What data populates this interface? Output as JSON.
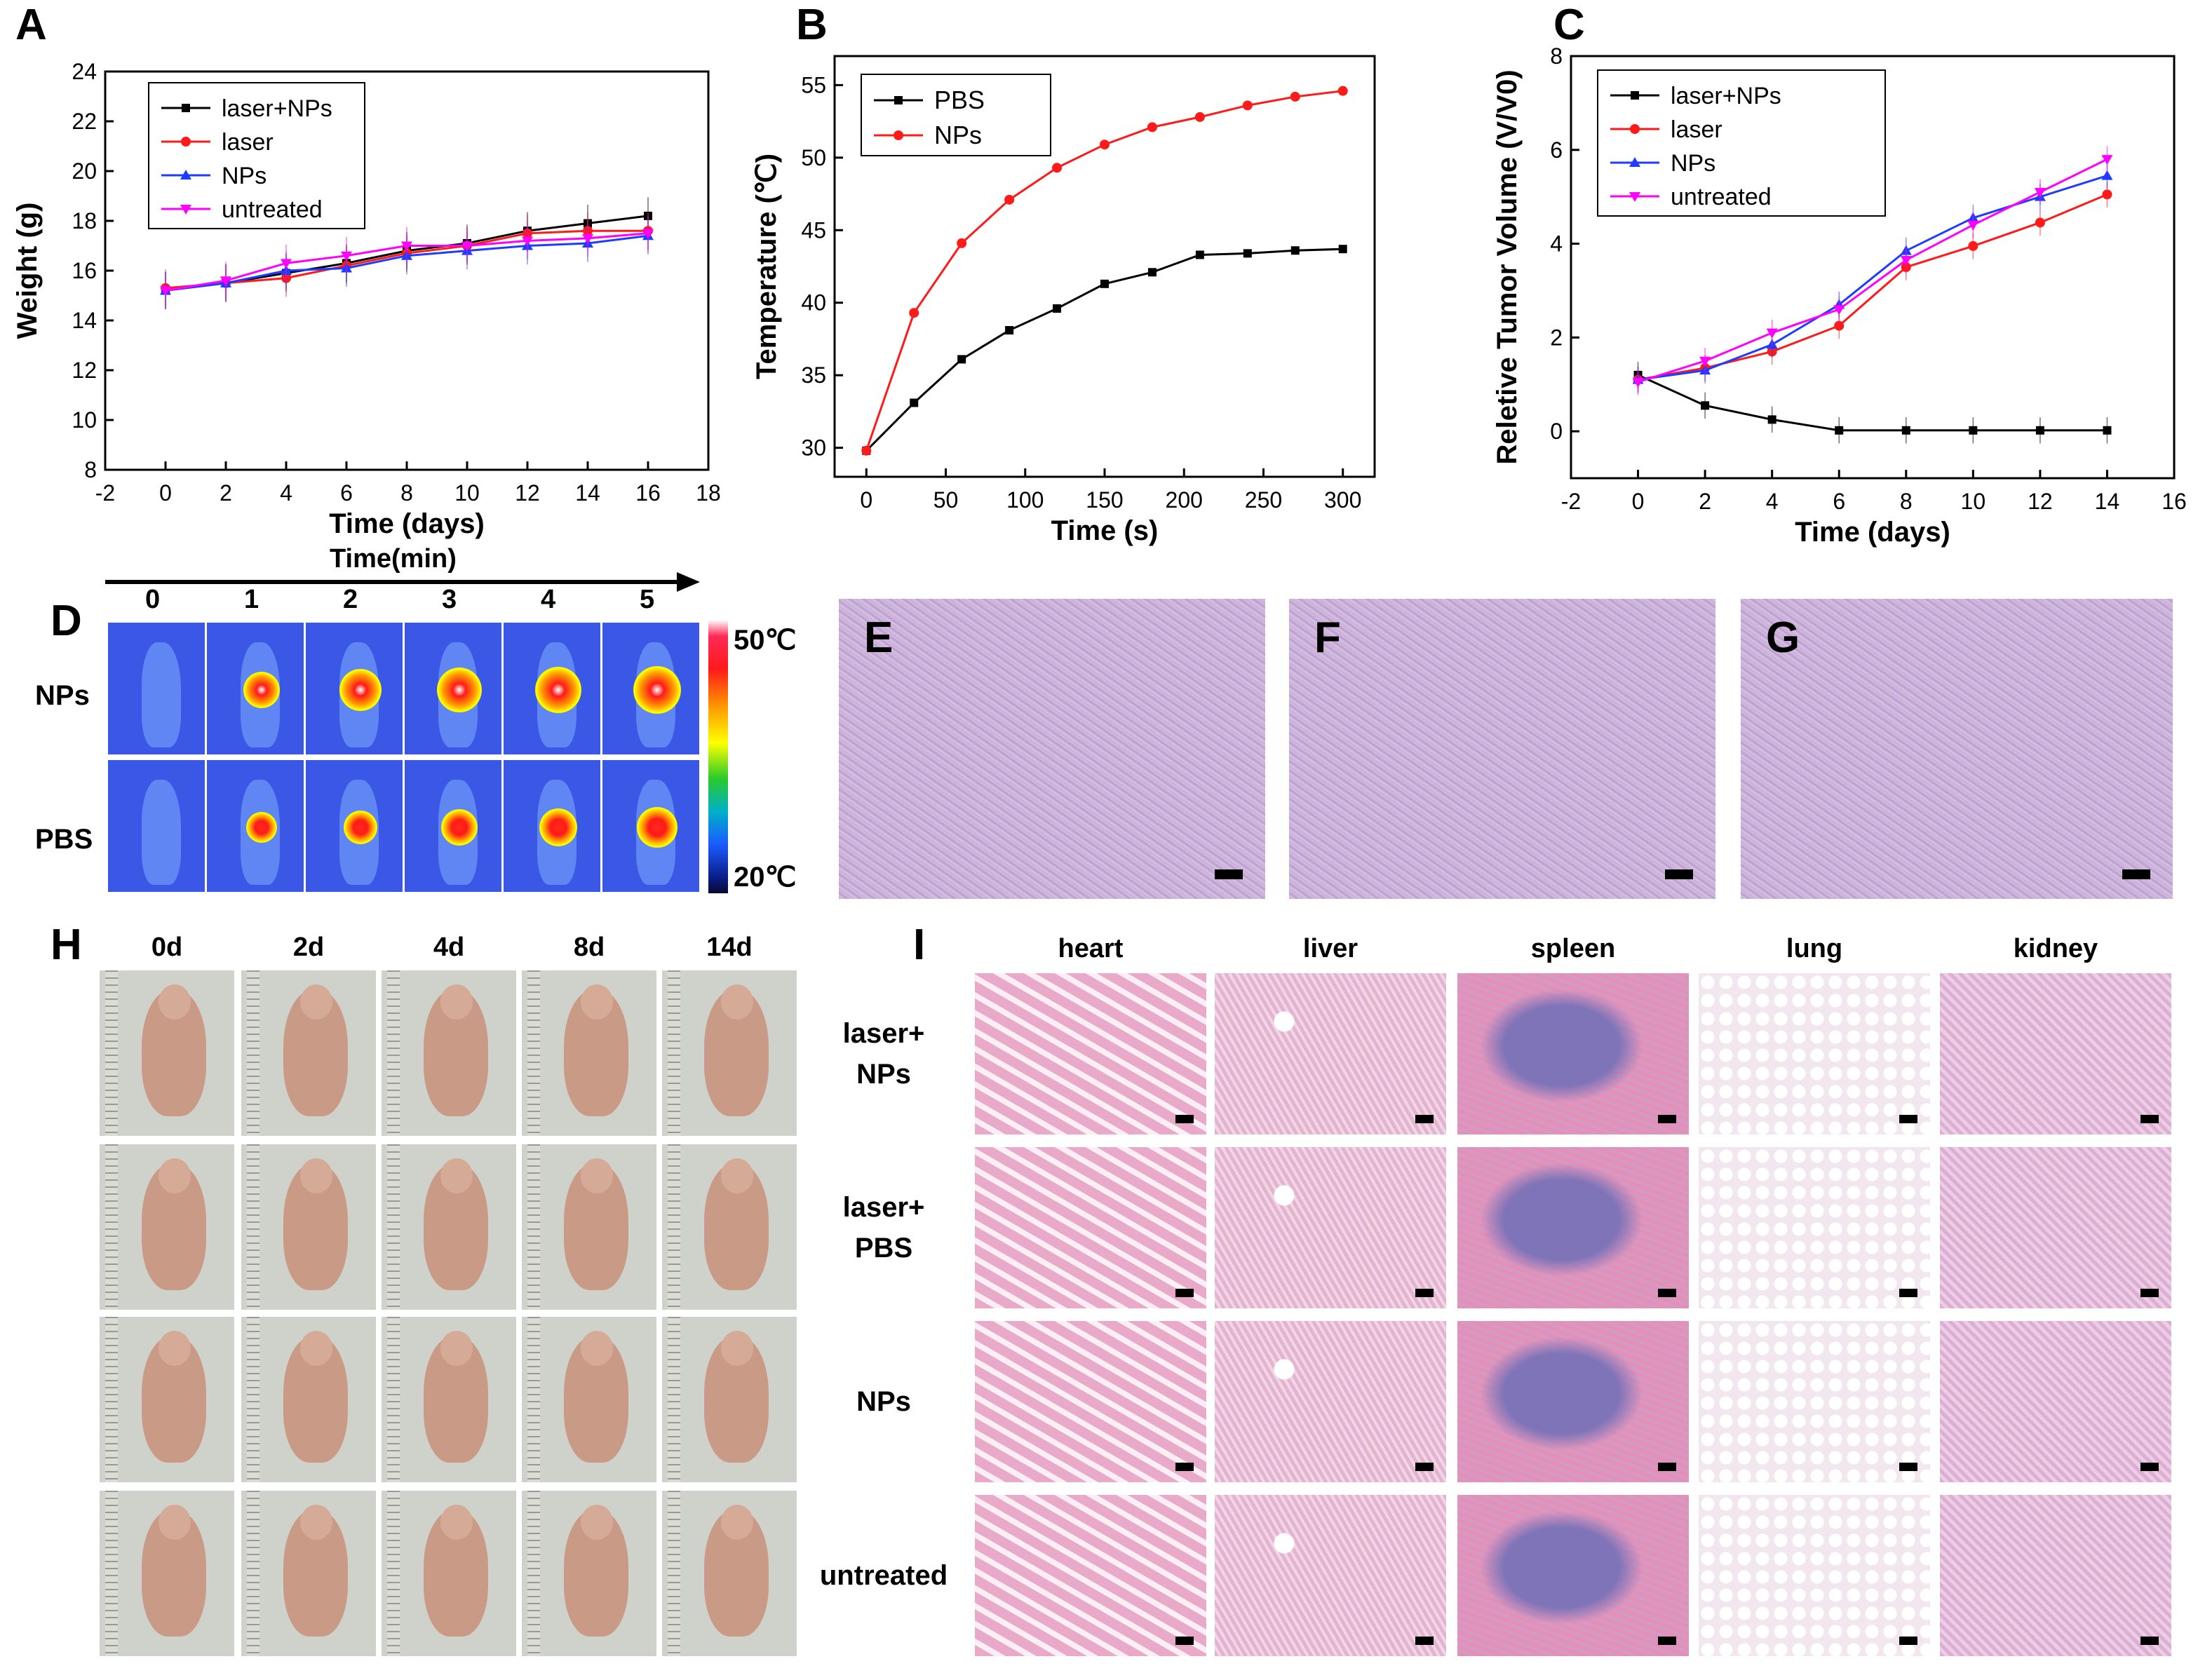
{
  "panels": {
    "A": {
      "letter": "A",
      "chart_data": {
        "type": "line",
        "xlabel": "Time (days)",
        "ylabel": "Weight (g)",
        "xlim": [
          -2,
          18
        ],
        "ylim": [
          8,
          24
        ],
        "xticks": [
          -2,
          0,
          2,
          4,
          6,
          8,
          10,
          12,
          14,
          16,
          18
        ],
        "yticks": [
          8,
          10,
          12,
          14,
          16,
          18,
          20,
          22,
          24
        ],
        "legend": "top-left",
        "x": [
          0,
          2,
          4,
          6,
          8,
          10,
          12,
          14,
          16
        ],
        "series": [
          {
            "name": "laser+NPs",
            "color": "#000000",
            "marker": "square",
            "values": [
              15.2,
              15.5,
              15.9,
              16.3,
              16.8,
              17.1,
              17.6,
              17.9,
              18.2
            ]
          },
          {
            "name": "laser",
            "color": "#ff1a1a",
            "marker": "circle",
            "values": [
              15.3,
              15.5,
              15.7,
              16.2,
              16.7,
              17.0,
              17.5,
              17.6,
              17.6
            ]
          },
          {
            "name": "NPs",
            "color": "#1f3bff",
            "marker": "triangle-up",
            "values": [
              15.2,
              15.5,
              16.0,
              16.1,
              16.6,
              16.8,
              17.0,
              17.1,
              17.4
            ]
          },
          {
            "name": "untreated",
            "color": "#ff00ff",
            "marker": "triangle-down",
            "values": [
              15.2,
              15.6,
              16.3,
              16.6,
              17.0,
              17.0,
              17.2,
              17.3,
              17.5
            ]
          }
        ]
      }
    },
    "B": {
      "letter": "B",
      "chart_data": {
        "type": "line",
        "xlabel": "Time (s)",
        "ylabel": "Temperature (℃)",
        "xlim": [
          -20,
          320
        ],
        "ylim": [
          28,
          57
        ],
        "xticks": [
          0,
          50,
          100,
          150,
          200,
          250,
          300
        ],
        "yticks": [
          30,
          35,
          40,
          45,
          50,
          55
        ],
        "legend": "top-left",
        "x": [
          0,
          30,
          60,
          90,
          120,
          150,
          180,
          210,
          240,
          270,
          300
        ],
        "series": [
          {
            "name": "PBS",
            "color": "#000000",
            "marker": "square",
            "values": [
              29.8,
              33.1,
              36.1,
              38.1,
              39.6,
              41.3,
              42.1,
              43.3,
              43.4,
              43.6,
              43.7
            ]
          },
          {
            "name": "NPs",
            "color": "#ff1a1a",
            "marker": "circle",
            "values": [
              29.8,
              39.3,
              44.1,
              47.1,
              49.3,
              50.9,
              52.1,
              52.8,
              53.6,
              54.2,
              54.6
            ]
          }
        ]
      }
    },
    "C": {
      "letter": "C",
      "chart_data": {
        "type": "line",
        "xlabel": "Time (days)",
        "ylabel": "Reletive Tumor Volume (V/V0)",
        "xlim": [
          -2,
          16
        ],
        "ylim": [
          -1,
          8
        ],
        "xticks": [
          -2,
          0,
          2,
          4,
          6,
          8,
          10,
          12,
          14,
          16
        ],
        "yticks": [
          0,
          2,
          4,
          6,
          8
        ],
        "legend": "top-left",
        "x": [
          0,
          2,
          4,
          6,
          8,
          10,
          12,
          14
        ],
        "series": [
          {
            "name": "laser+NPs",
            "color": "#000000",
            "marker": "square",
            "values": [
              1.2,
              0.55,
              0.25,
              0.02,
              0.02,
              0.02,
              0.02,
              0.02
            ]
          },
          {
            "name": "laser",
            "color": "#ff1a1a",
            "marker": "circle",
            "values": [
              1.1,
              1.35,
              1.7,
              2.25,
              3.5,
              3.95,
              4.45,
              5.05
            ]
          },
          {
            "name": "NPs",
            "color": "#1f3bff",
            "marker": "triangle-up",
            "values": [
              1.1,
              1.3,
              1.85,
              2.7,
              3.85,
              4.55,
              5.0,
              5.45
            ]
          },
          {
            "name": "untreated",
            "color": "#ff00ff",
            "marker": "triangle-down",
            "values": [
              1.05,
              1.5,
              2.1,
              2.6,
              3.65,
              4.4,
              5.1,
              5.8
            ]
          }
        ]
      }
    },
    "D": {
      "letter": "D",
      "time_title": "Time(min)",
      "times": [
        "0",
        "1",
        "2",
        "3",
        "4",
        "5"
      ],
      "rows": [
        "NPs",
        "PBS"
      ],
      "scale_max": "50℃",
      "scale_min": "20℃",
      "hotspot_levels": {
        "NPs": [
          0,
          0.55,
          0.75,
          0.85,
          0.9,
          0.95
        ],
        "PBS": [
          0,
          0.35,
          0.45,
          0.55,
          0.62,
          0.68
        ]
      }
    },
    "E": {
      "letter": "E"
    },
    "F": {
      "letter": "F"
    },
    "G": {
      "letter": "G"
    },
    "H": {
      "letter": "H",
      "days": [
        "0d",
        "2d",
        "4d",
        "8d",
        "14d"
      ]
    },
    "I": {
      "letter": "I",
      "organs": [
        "heart",
        "liver",
        "spleen",
        "lung",
        "kidney"
      ],
      "rows": [
        "laser+\nNPs",
        "laser+\nPBS",
        "NPs",
        "untreated"
      ]
    }
  },
  "colors": {
    "histo_bg": "#d9c0e0",
    "histo_stain": "#9a7fc4",
    "heart_pink": "#e9a9c8",
    "liver_pink": "#e3b4d0",
    "spleen_blue": "#7f74b8",
    "lung_bg": "#f2e6ef",
    "kidney_pink": "#dcaed3",
    "mouse_skin": "#c99a86",
    "photo_bg": "#cfd1cb"
  }
}
